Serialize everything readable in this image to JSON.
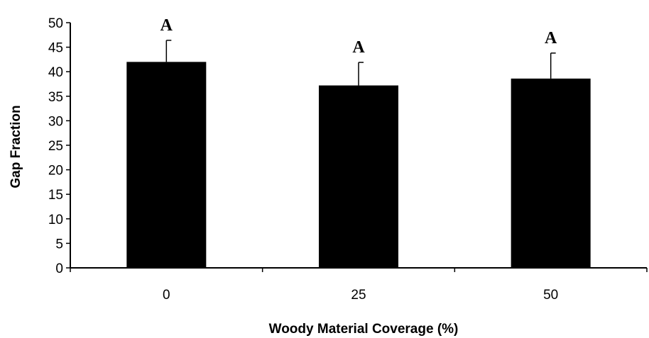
{
  "chart_data": {
    "type": "bar",
    "categories": [
      "0",
      "25",
      "50"
    ],
    "values": [
      42,
      37.2,
      38.6
    ],
    "error_upper": [
      46.4,
      41.9,
      43.8
    ],
    "significance_labels": [
      "A",
      "A",
      "A"
    ],
    "xlabel": "Woody Material Coverage (%)",
    "ylabel": "Gap Fraction",
    "ylim": [
      0,
      50
    ],
    "yticks": [
      0,
      5,
      10,
      15,
      20,
      25,
      30,
      35,
      40,
      45,
      50
    ],
    "grid": false,
    "bar_color": "#000000"
  }
}
